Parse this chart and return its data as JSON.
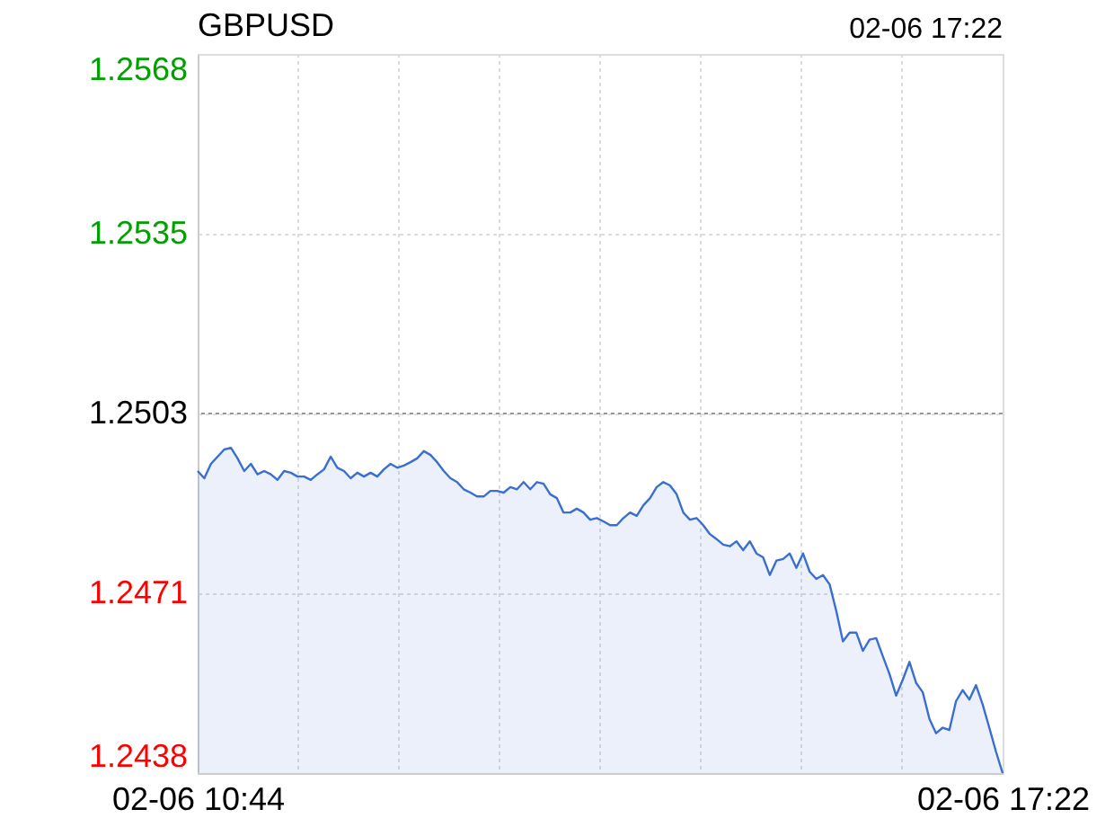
{
  "chart_data": {
    "type": "area",
    "title": "GBPUSD",
    "annotations": [
      "02-06 17:22"
    ],
    "categories": [
      "02-06 10:44",
      null,
      null,
      null,
      null,
      null,
      null,
      null,
      null,
      null,
      null,
      null,
      null,
      null,
      null,
      null,
      null,
      null,
      null,
      null,
      null,
      null,
      null,
      null,
      null,
      null,
      null,
      null,
      null,
      null,
      null,
      null,
      null,
      null,
      null,
      null,
      null,
      null,
      null,
      null,
      null,
      null,
      null,
      null,
      null,
      null,
      null,
      null,
      null,
      null,
      null,
      null,
      null,
      null,
      null,
      null,
      null,
      null,
      null,
      null,
      null,
      null,
      null,
      null,
      null,
      null,
      null,
      null,
      null,
      null,
      null,
      null,
      null,
      null,
      null,
      null,
      null,
      null,
      null,
      null,
      null,
      null,
      null,
      null,
      null,
      null,
      null,
      null,
      null,
      null,
      null,
      null,
      null,
      null,
      null,
      null,
      null,
      null,
      null,
      null,
      null,
      null,
      null,
      null,
      null,
      null,
      null,
      null,
      null,
      null,
      null,
      null,
      null,
      null,
      null,
      null,
      null,
      null,
      null,
      null,
      null,
      "02-06 17:22"
    ],
    "series": [
      {
        "color": "#3a6fcf",
        "values": [
          1.24926,
          1.24913,
          1.24939,
          1.24952,
          1.24965,
          1.24968,
          1.24949,
          1.24926,
          1.24939,
          1.2492,
          1.24926,
          1.2492,
          1.2491,
          1.24926,
          1.24923,
          1.24916,
          1.24916,
          1.2491,
          1.2492,
          1.24929,
          1.24952,
          1.24932,
          1.24926,
          1.24913,
          1.24923,
          1.24916,
          1.24923,
          1.24916,
          1.24929,
          1.24939,
          1.24932,
          1.24936,
          1.24942,
          1.24949,
          1.24962,
          1.24955,
          1.24942,
          1.24926,
          1.24913,
          1.24906,
          1.24893,
          1.24887,
          1.2488,
          1.2488,
          1.2489,
          1.2489,
          1.24887,
          1.24897,
          1.24893,
          1.24906,
          1.24893,
          1.24906,
          1.24903,
          1.24884,
          1.24877,
          1.24851,
          1.24851,
          1.24858,
          1.24851,
          1.24838,
          1.24841,
          1.24835,
          1.24828,
          1.24828,
          1.24841,
          1.24851,
          1.24845,
          1.24864,
          1.24877,
          1.24897,
          1.24906,
          1.249,
          1.24884,
          1.24851,
          1.24838,
          1.24841,
          1.24828,
          1.24812,
          1.24803,
          1.24793,
          1.2479,
          1.24799,
          1.24783,
          1.24799,
          1.24777,
          1.2477,
          1.24738,
          1.24764,
          1.24767,
          1.24777,
          1.24751,
          1.24777,
          1.24744,
          1.24731,
          1.24738,
          1.24721,
          1.24673,
          1.24618,
          1.24634,
          1.24634,
          1.24601,
          1.24621,
          1.24624,
          1.24591,
          1.24559,
          1.2452,
          1.24549,
          1.24581,
          1.24543,
          1.24526,
          1.24478,
          1.24452,
          1.24462,
          1.24458,
          1.2451,
          1.2453,
          1.24513,
          1.24539,
          1.24504,
          1.24462,
          1.24419,
          1.2438
        ]
      }
    ],
    "ylim": [
      1.2438,
      1.2568
    ],
    "yticks": [
      1.2438,
      {
        "value": 1.24705,
        "label": "1.2471"
      },
      1.2503,
      {
        "value": 1.25355,
        "label": "1.2535"
      },
      1.2568
    ],
    "ref_lines": [
      {
        "axis": "y",
        "value": 1.2503,
        "color": "#999999",
        "line_style": "dotted"
      }
    ],
    "grid": true
  }
}
